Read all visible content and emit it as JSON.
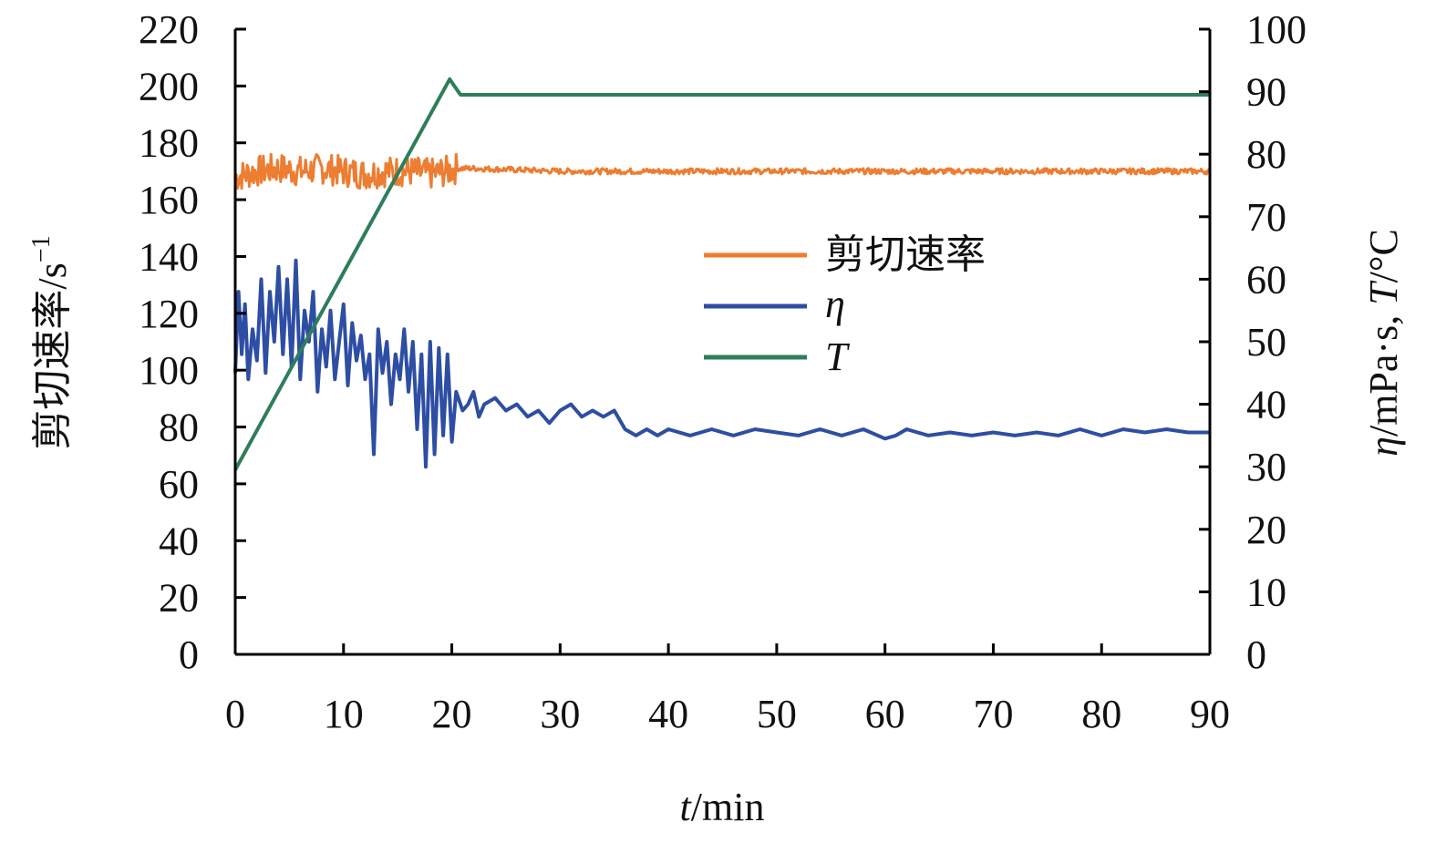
{
  "chart_data": {
    "type": "line",
    "x_axis": {
      "label_var": "t",
      "label_unit": "/min",
      "min": 0,
      "max": 90,
      "ticks": [
        0,
        10,
        20,
        30,
        40,
        50,
        60,
        70,
        80,
        90
      ]
    },
    "y_left": {
      "label": "剪切速率/s",
      "label_sup": "−1",
      "min": 0,
      "max": 220,
      "ticks": [
        0,
        20,
        40,
        60,
        80,
        100,
        120,
        140,
        160,
        180,
        200,
        220
      ]
    },
    "y_right": {
      "label_eta": "η",
      "label_mid": "/mPa·s, ",
      "label_T": "T",
      "label_end": "/°C",
      "min": 0,
      "max": 100,
      "ticks": [
        0,
        10,
        20,
        30,
        40,
        50,
        60,
        70,
        80,
        90,
        100
      ]
    },
    "series": [
      {
        "name": "剪切速率",
        "axis": "left",
        "color": "#ED7D31",
        "noise": 2.5,
        "x": [
          0,
          2,
          4,
          6,
          8,
          10,
          12,
          14,
          16,
          18,
          19.5,
          20.5,
          22,
          30,
          40,
          50,
          60,
          70,
          80,
          90
        ],
        "y": [
          168,
          170,
          171,
          170,
          171,
          170,
          169,
          170,
          170,
          169,
          170,
          171,
          171,
          170,
          170,
          170,
          170,
          170,
          170,
          170
        ]
      },
      {
        "name": "η",
        "axis": "right",
        "color": "#2E4EA3",
        "x": [
          0,
          0.3,
          0.6,
          0.9,
          1.2,
          1.6,
          2,
          2.4,
          2.8,
          3.2,
          3.6,
          4,
          4.4,
          4.8,
          5.2,
          5.6,
          6,
          6.4,
          6.8,
          7.2,
          7.6,
          8,
          8.4,
          8.8,
          9.2,
          9.6,
          10,
          10.4,
          10.8,
          11.2,
          11.6,
          12,
          12.4,
          12.8,
          13.2,
          13.6,
          14,
          14.4,
          14.8,
          15.2,
          15.6,
          16,
          16.4,
          16.8,
          17.2,
          17.6,
          18,
          18.4,
          18.8,
          19.2,
          19.6,
          20,
          20.4,
          21,
          21.5,
          22,
          22.5,
          23,
          24,
          25,
          26,
          27,
          28,
          29,
          30,
          31,
          32,
          33,
          34,
          35,
          36,
          37,
          38,
          39,
          40,
          42,
          44,
          46,
          48,
          50,
          52,
          54,
          56,
          58,
          60,
          61,
          62,
          64,
          66,
          68,
          70,
          72,
          74,
          76,
          78,
          80,
          82,
          84,
          86,
          88,
          90
        ],
        "y": [
          45,
          58,
          48,
          56,
          44,
          52,
          47,
          60,
          45,
          58,
          50,
          62,
          48,
          60,
          46,
          63,
          44,
          55,
          50,
          58,
          42,
          52,
          46,
          55,
          44,
          50,
          56,
          43,
          53,
          47,
          51,
          44,
          48,
          32,
          52,
          45,
          50,
          40,
          48,
          44,
          52,
          42,
          50,
          36,
          48,
          30,
          50,
          32,
          49,
          35,
          48,
          34,
          42,
          39,
          40,
          42,
          38,
          40,
          41,
          39,
          40,
          38,
          39,
          37,
          39,
          40,
          38,
          39,
          38,
          39,
          36,
          35,
          36,
          35,
          36,
          35,
          36,
          35,
          36,
          35.5,
          35,
          36,
          35,
          36,
          34.5,
          35,
          36,
          35,
          35.5,
          35,
          35.5,
          35,
          35.5,
          35,
          36,
          35,
          36,
          35.5,
          36,
          35.5,
          35.5
        ]
      },
      {
        "name": "T",
        "axis": "right",
        "color": "#2E7D5B",
        "x": [
          0,
          19.8,
          20.2,
          20.8,
          90
        ],
        "y": [
          29.5,
          92,
          91,
          89.5,
          89.5
        ]
      }
    ],
    "legend": {
      "position": "center-right",
      "items": [
        "剪切速率",
        "η",
        "T"
      ]
    }
  }
}
